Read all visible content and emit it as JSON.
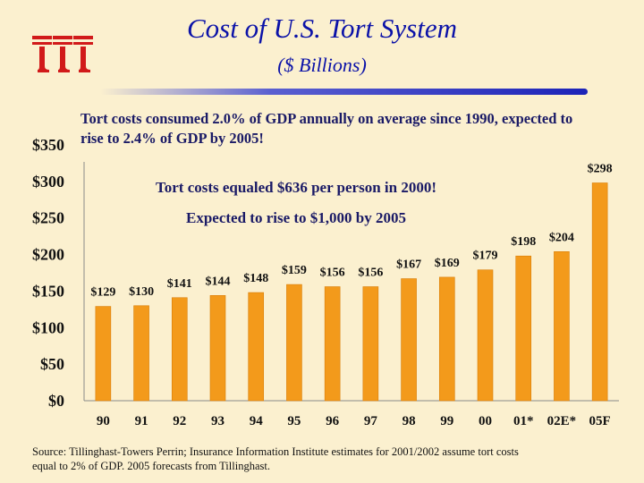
{
  "slide": {
    "title": "Cost of U.S. Tort System",
    "subtitle": "($ Billions)",
    "callout": "Tort costs consumed 2.0% of GDP annually on average since 1990, expected to rise to 2.4% of GDP by 2005!",
    "note1": "Tort costs equaled $636 per person in 2000!",
    "note2": "Expected to rise to $1,000 by 2005",
    "source": "Source: Tillinghast-Towers Perrin; Insurance Information Institute estimates for 2001/2002 assume tort costs equal to 2% of GDP. 2005 forecasts from Tillinghast.",
    "logo_text": "iii"
  },
  "colors": {
    "background": "#fbf0cf",
    "bar": "#f39a1b",
    "bar_edge": "#d97e08",
    "title": "#0b12a8",
    "text": "#1a1a66"
  },
  "chart_data": {
    "type": "bar",
    "categories": [
      "90",
      "91",
      "92",
      "93",
      "94",
      "95",
      "96",
      "97",
      "98",
      "99",
      "00",
      "01*",
      "02E*",
      "05F"
    ],
    "values": [
      129,
      130,
      141,
      144,
      148,
      159,
      156,
      156,
      167,
      169,
      179,
      198,
      204,
      298
    ],
    "data_labels": [
      "$129",
      "$130",
      "$141",
      "$144",
      "$148",
      "$159",
      "$156",
      "$156",
      "$167",
      "$169",
      "$179",
      "$198",
      "$204",
      "$298"
    ],
    "y_ticks": [
      0,
      50,
      100,
      150,
      200,
      250,
      300,
      350
    ],
    "y_tick_labels": [
      "$0",
      "$50",
      "$100",
      "$150",
      "$200",
      "$250",
      "$300",
      "$350"
    ],
    "ylim": [
      0,
      350
    ],
    "grid": false,
    "legend": "none"
  }
}
